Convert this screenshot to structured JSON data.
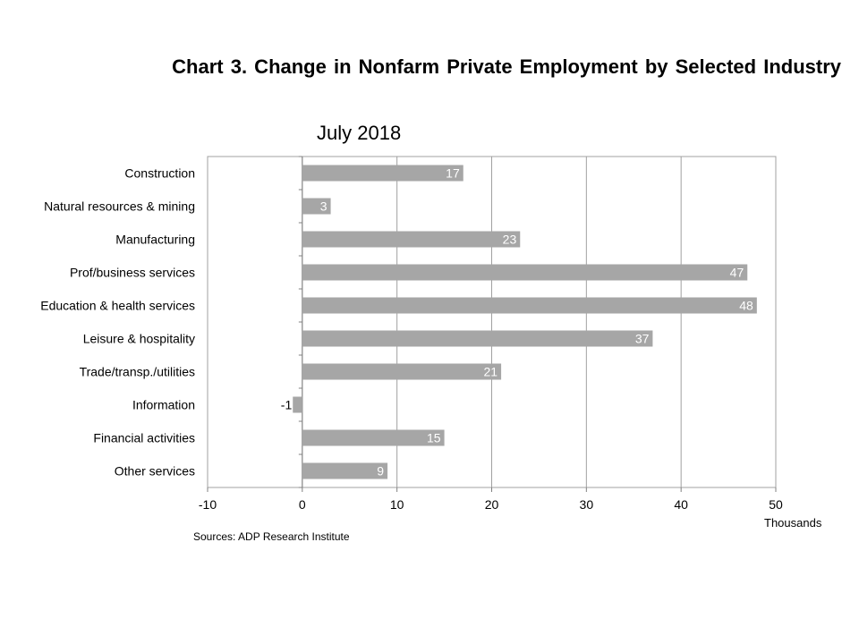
{
  "chart_data": {
    "type": "bar",
    "orientation": "horizontal",
    "title": "Chart 3. Change in Nonfarm Private Employment by Selected Industry",
    "subtitle": "July 2018",
    "categories": [
      "Construction",
      "Natural resources & mining",
      "Manufacturing",
      "Prof/business services",
      "Education & health services",
      "Leisure & hospitality",
      "Trade/transp./utilities",
      "Information",
      "Financial activities",
      "Other services"
    ],
    "values": [
      17,
      3,
      23,
      47,
      48,
      37,
      21,
      -1,
      15,
      9
    ],
    "data_labels": [
      "17",
      "3",
      "23",
      "47",
      "48",
      "37",
      "21",
      "-1",
      "15",
      "9"
    ],
    "xlim": [
      -10,
      50
    ],
    "xticks": [
      "-10",
      "0",
      "10",
      "20",
      "30",
      "40",
      "50"
    ],
    "xtick_values": [
      -10,
      0,
      10,
      20,
      30,
      40,
      50
    ],
    "xlabel": "Thousands",
    "ylabel": "",
    "grid": "vertical",
    "legend": "none",
    "bar_color": "#a6a6a6",
    "source": "Sources: ADP Research Institute"
  }
}
